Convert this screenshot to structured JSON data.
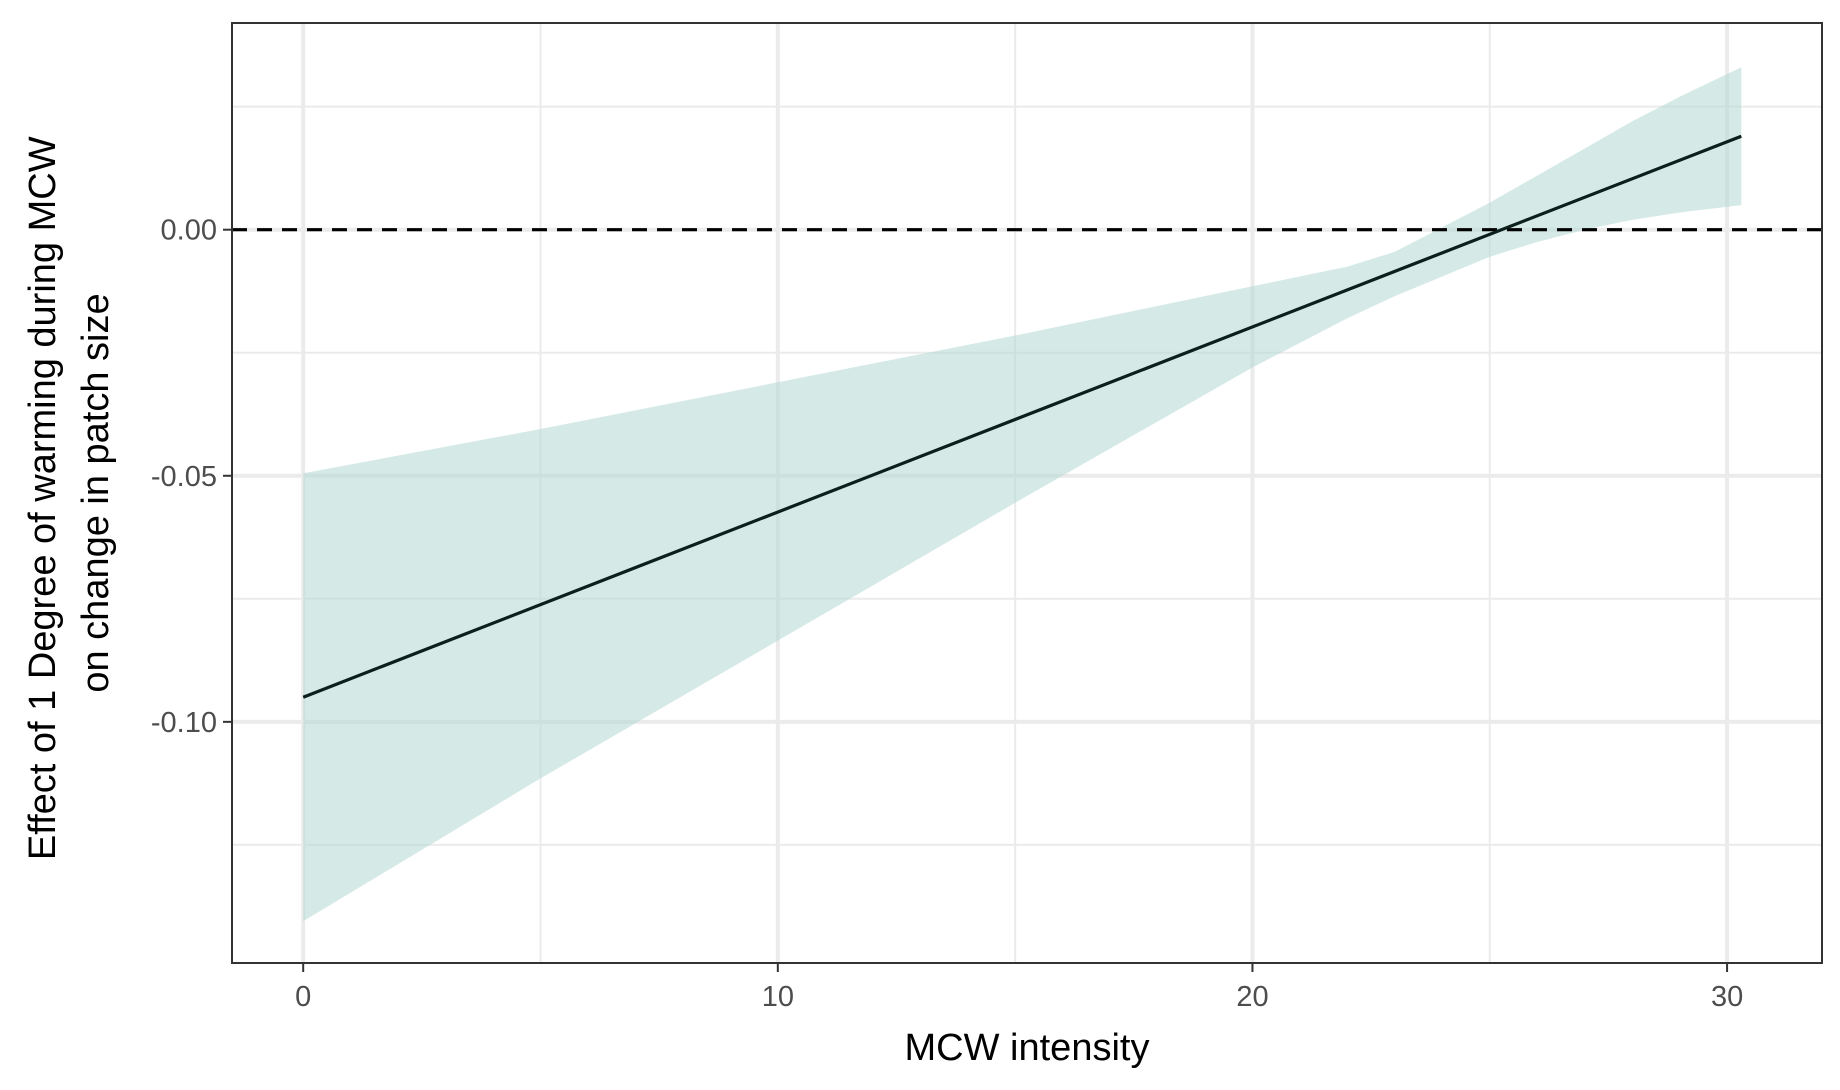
{
  "chart_data": {
    "type": "line",
    "title": "",
    "xlabel": "MCW intensity",
    "ylabel_lines": [
      "Effect of 1 Degree of warming during MCW",
      "on change in patch size"
    ],
    "xlim": [
      -1.5,
      32
    ],
    "ylim": [
      -0.149,
      0.042
    ],
    "x_ticks": [
      0,
      10,
      20,
      30
    ],
    "y_ticks": [
      0.0,
      -0.05,
      -0.1
    ],
    "y_tick_labels": [
      "0.00",
      "-0.05",
      "-0.10"
    ],
    "x_minor_ticks": [
      5,
      15,
      25
    ],
    "y_minor_ticks": [
      -0.125,
      -0.075,
      -0.025,
      0.025
    ],
    "grid": true,
    "reference_line": {
      "y": 0.0,
      "style": "dashed"
    },
    "series": [
      {
        "x": [
          0,
          30.3
        ],
        "y": [
          -0.095,
          0.019
        ]
      }
    ],
    "ribbon": {
      "x": [
        0,
        5,
        10,
        15,
        20,
        22,
        23,
        24,
        25,
        26,
        27,
        28,
        29,
        30.3
      ],
      "upper": [
        -0.0495,
        -0.0405,
        -0.031,
        -0.0215,
        -0.0115,
        -0.0075,
        -0.0045,
        0.0005,
        0.0055,
        0.011,
        0.0165,
        0.022,
        0.027,
        0.033
      ],
      "lower": [
        -0.1405,
        -0.1115,
        -0.0835,
        -0.0555,
        -0.028,
        -0.018,
        -0.0135,
        -0.0095,
        -0.0055,
        -0.0025,
        0.0,
        0.002,
        0.0035,
        0.005
      ]
    },
    "colors": {
      "line": "#0d1f1a",
      "ribbon": "#b3d9d2",
      "reference": "#000000",
      "grid": "#ebebeb",
      "panel_border": "#333333"
    }
  }
}
